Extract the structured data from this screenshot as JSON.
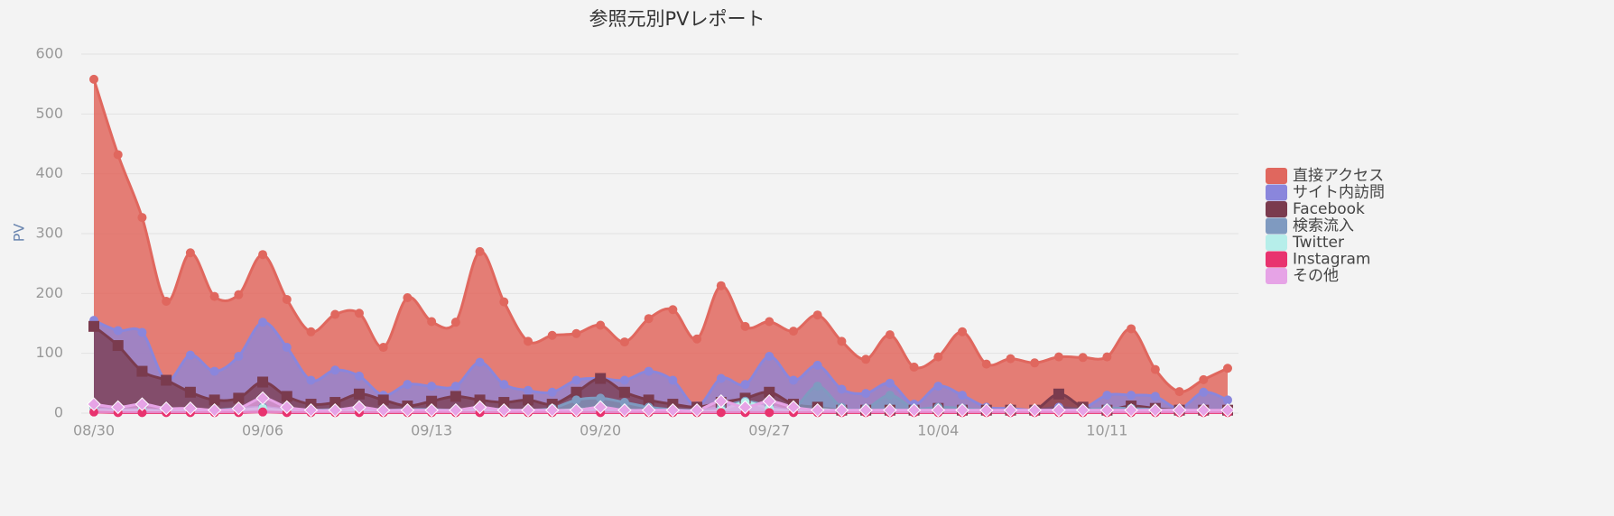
{
  "chart_data": {
    "type": "area",
    "title": "参照元別PVレポート",
    "y_label": "PV",
    "categories": [
      "08/30",
      null,
      null,
      null,
      null,
      null,
      null,
      "09/06",
      null,
      null,
      null,
      null,
      null,
      null,
      "09/13",
      null,
      null,
      null,
      null,
      null,
      null,
      "09/20",
      null,
      null,
      null,
      null,
      null,
      null,
      "09/27",
      null,
      null,
      null,
      null,
      null,
      null,
      "10/04",
      null,
      null,
      null,
      null,
      null,
      null,
      "10/11",
      null,
      null,
      null,
      null,
      null
    ],
    "ylim": [
      0,
      600
    ],
    "yticks": [
      0,
      100,
      200,
      300,
      400,
      500,
      600
    ],
    "grid": true,
    "legend": "right",
    "series": [
      {
        "name": "直接アクセス",
        "color": "#e0675e",
        "marker": "circle",
        "values": [
          558,
          432,
          327,
          187,
          268,
          195,
          198,
          265,
          190,
          136,
          165,
          167,
          110,
          193,
          153,
          152,
          270,
          186,
          120,
          130,
          133,
          147,
          119,
          158,
          173,
          124,
          213,
          145,
          153,
          137,
          164,
          120,
          90,
          131,
          77,
          94,
          136,
          82,
          91,
          84,
          94,
          93,
          94,
          141,
          73,
          36,
          56,
          75
        ]
      },
      {
        "name": "サイト内訪問",
        "color": "#8a86dc",
        "marker": "circle",
        "values": [
          155,
          138,
          135,
          55,
          97,
          70,
          95,
          152,
          110,
          55,
          72,
          62,
          30,
          48,
          45,
          45,
          85,
          48,
          38,
          35,
          55,
          58,
          55,
          70,
          55,
          12,
          58,
          48,
          95,
          55,
          80,
          40,
          33,
          50,
          15,
          45,
          30,
          10,
          8,
          5,
          10,
          8,
          30,
          30,
          28,
          8,
          35,
          22
        ]
      },
      {
        "name": "Facebook",
        "color": "#7a3b4e",
        "marker": "square",
        "values": [
          145,
          113,
          70,
          55,
          35,
          22,
          25,
          52,
          28,
          15,
          18,
          32,
          22,
          12,
          20,
          28,
          22,
          18,
          22,
          15,
          35,
          58,
          35,
          22,
          15,
          10,
          18,
          25,
          35,
          15,
          10,
          5,
          5,
          5,
          5,
          8,
          5,
          5,
          5,
          5,
          32,
          10,
          5,
          12,
          8,
          5,
          5,
          5
        ]
      },
      {
        "name": "検索流入",
        "color": "#7f9ac0",
        "marker": "circle",
        "values": [
          8,
          6,
          6,
          5,
          6,
          5,
          8,
          10,
          6,
          5,
          6,
          8,
          5,
          6,
          6,
          5,
          8,
          6,
          5,
          8,
          22,
          25,
          18,
          10,
          6,
          5,
          10,
          20,
          12,
          8,
          45,
          10,
          8,
          30,
          8,
          10,
          8,
          5,
          5,
          5,
          5,
          6,
          8,
          8,
          6,
          5,
          5,
          5
        ]
      },
      {
        "name": "Twitter",
        "color": "#b6eeea",
        "marker": "circle",
        "values": [
          5,
          4,
          5,
          3,
          4,
          3,
          5,
          8,
          4,
          3,
          4,
          5,
          3,
          4,
          3,
          3,
          5,
          4,
          3,
          4,
          6,
          8,
          5,
          4,
          3,
          3,
          5,
          18,
          8,
          4,
          6,
          4,
          3,
          5,
          3,
          4,
          3,
          2,
          2,
          2,
          3,
          2,
          3,
          3,
          2,
          2,
          2,
          2
        ]
      },
      {
        "name": "Instagram",
        "color": "#e8336f",
        "marker": "circle",
        "values": [
          2,
          1,
          1,
          1,
          1,
          1,
          1,
          2,
          1,
          1,
          1,
          1,
          1,
          1,
          1,
          1,
          1,
          1,
          1,
          1,
          1,
          1,
          1,
          1,
          1,
          1,
          1,
          1,
          1,
          1,
          1,
          1,
          1,
          1,
          1,
          1,
          1,
          1,
          1,
          1,
          1,
          1,
          1,
          1,
          1,
          1,
          1,
          1
        ]
      },
      {
        "name": "その他",
        "color": "#e6a3e6",
        "marker": "diamond",
        "values": [
          15,
          10,
          15,
          8,
          8,
          5,
          8,
          25,
          10,
          5,
          5,
          10,
          5,
          5,
          5,
          5,
          10,
          5,
          5,
          5,
          5,
          10,
          5,
          5,
          5,
          5,
          20,
          10,
          20,
          10,
          5,
          5,
          5,
          5,
          5,
          5,
          5,
          5,
          5,
          5,
          5,
          5,
          5,
          5,
          5,
          5,
          5,
          5
        ]
      }
    ]
  }
}
